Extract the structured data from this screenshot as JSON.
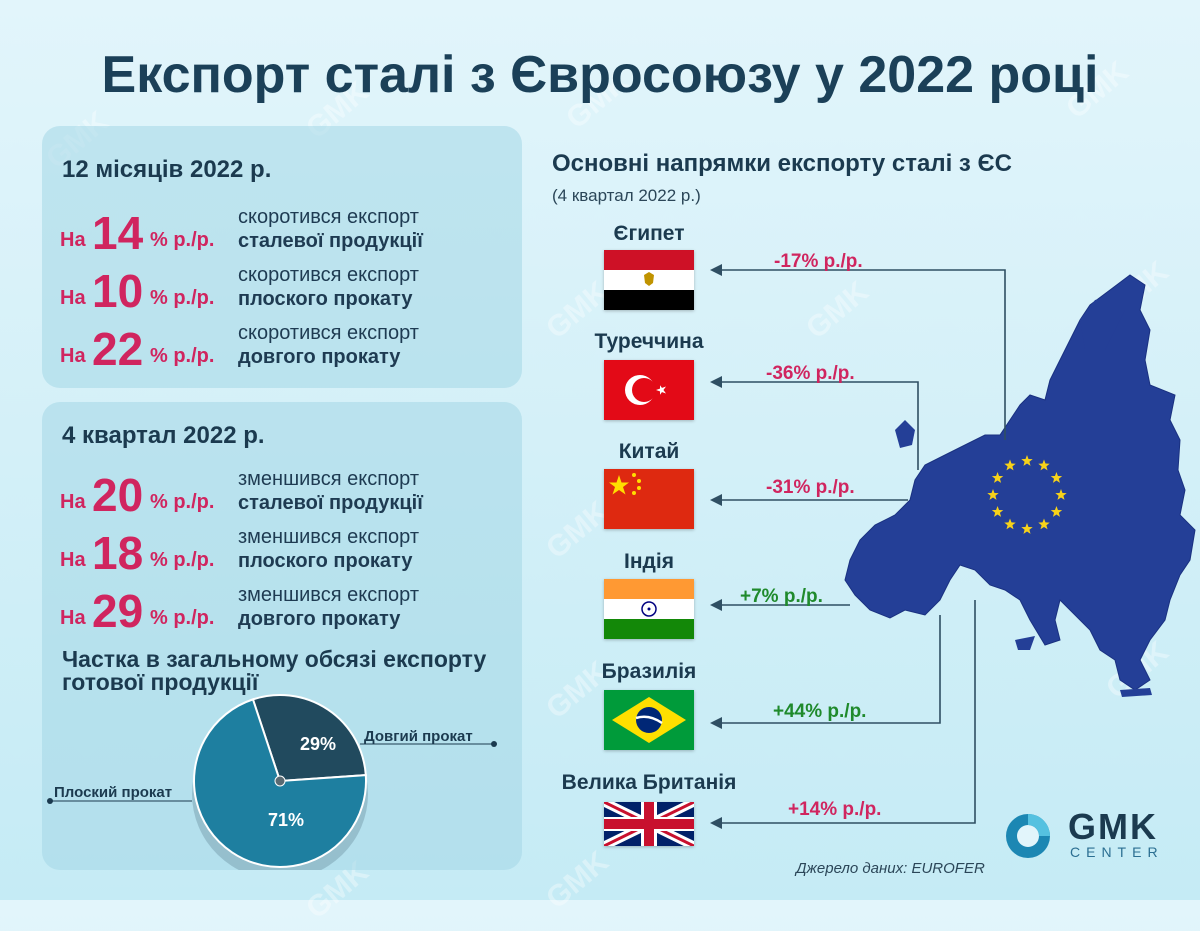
{
  "title": "Експорт сталі з Євросоюзу у 2022 році",
  "annual": {
    "heading": "12 місяців 2022 р.",
    "items": [
      {
        "prefix": "На",
        "value": "14",
        "unit": "% р./р.",
        "line1": "скоротився експорт",
        "line2": "сталевої продукції"
      },
      {
        "prefix": "На",
        "value": "10",
        "unit": "% р./р.",
        "line1": "скоротився експорт",
        "line2": "плоского прокату"
      },
      {
        "prefix": "На",
        "value": "22",
        "unit": "% р./р.",
        "line1": "скоротився експорт",
        "line2": "довгого прокату"
      }
    ]
  },
  "quarter": {
    "heading": "4 квартал 2022 р.",
    "items": [
      {
        "prefix": "На",
        "value": "20",
        "unit": "% р./р.",
        "line1": "зменшився експорт",
        "line2": "сталевої продукції"
      },
      {
        "prefix": "На",
        "value": "18",
        "unit": "% р./р.",
        "line1": "зменшився експорт",
        "line2": "плоского прокату"
      },
      {
        "prefix": "На",
        "value": "29",
        "unit": "% р./р.",
        "line1": "зменшився експорт",
        "line2": "довгого прокату"
      }
    ]
  },
  "share": {
    "heading": "Частка в загальному обсязі експорту готової продукції",
    "long_label": "Довгий прокат",
    "flat_label": "Плоский прокат",
    "long_value": "29%",
    "flat_value": "71%"
  },
  "chart_data": {
    "type": "pie",
    "title": "Частка в загальному обсязі експорту готової продукції",
    "labels": [
      "Довгий прокат",
      "Плоский прокат"
    ],
    "values": [
      29,
      71
    ],
    "colors": [
      "#214a5e",
      "#1e7fa0"
    ]
  },
  "destinations": {
    "title": "Основні напрямки експорту сталі з ЄС",
    "subtitle": "(4 квартал 2022 р.)",
    "countries": [
      {
        "name": "Єгипет",
        "change": "-17% р./р.",
        "flag": "egypt-flag"
      },
      {
        "name": "Туреччина",
        "change": "-36% р./р.",
        "flag": "turkey-flag"
      },
      {
        "name": "Китай",
        "change": "-31% р./р.",
        "flag": "china-flag"
      },
      {
        "name": "Індія",
        "change": "+7% р./р.",
        "flag": "india-flag"
      },
      {
        "name": "Бразилія",
        "change": "+44% р./р.",
        "flag": "brazil-flag"
      },
      {
        "name": "Велика Британія",
        "change": "+14% р./р.",
        "flag": "uk-flag"
      }
    ]
  },
  "colors": {
    "negative": "#d0255f",
    "positive": "#1f8a2c",
    "eu_blue": "#243f97",
    "eu_star": "#f7d21a"
  },
  "brand": {
    "name": "GMK",
    "sub": "CENTER",
    "watermark": "GMK"
  },
  "source": "Джерело даних: EUROFER"
}
